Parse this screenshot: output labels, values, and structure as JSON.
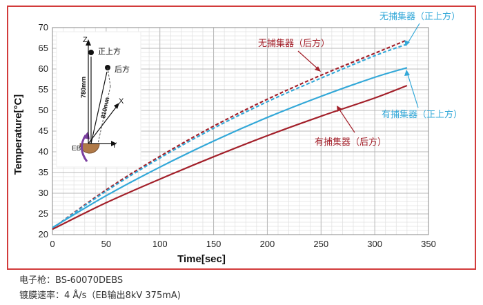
{
  "chart_data": {
    "type": "line",
    "xlabel": "Time[sec]",
    "ylabel": "Temperature[°C]",
    "xlim": [
      0,
      350
    ],
    "ylim": [
      20,
      70
    ],
    "xticks": [
      0,
      50,
      100,
      150,
      200,
      250,
      300,
      350
    ],
    "yticks": [
      20,
      25,
      30,
      35,
      40,
      45,
      50,
      55,
      60,
      65,
      70
    ],
    "grid": true,
    "series": [
      {
        "name": "无捕集器（后方）",
        "color": "#a3202a",
        "dashed": true,
        "x": [
          0,
          50,
          100,
          150,
          200,
          250,
          300,
          330
        ],
        "y": [
          21.5,
          30.8,
          38.9,
          46.2,
          52.7,
          58.5,
          63.8,
          67.0
        ]
      },
      {
        "name": "无捕集器（正上方）",
        "color": "#33a8d8",
        "dashed": true,
        "x": [
          0,
          50,
          100,
          150,
          200,
          250,
          300,
          330
        ],
        "y": [
          21.5,
          30.5,
          38.5,
          45.7,
          52.1,
          57.8,
          63.2,
          66.0
        ]
      },
      {
        "name": "有捕集器（正上方）",
        "color": "#33a8d8",
        "dashed": false,
        "x": [
          0,
          50,
          100,
          150,
          200,
          250,
          300,
          330
        ],
        "y": [
          21.7,
          29.4,
          36.3,
          42.6,
          48.3,
          53.4,
          58.0,
          60.3
        ]
      },
      {
        "name": "有捕集器（后方）",
        "color": "#a3202a",
        "dashed": false,
        "x": [
          0,
          50,
          100,
          150,
          200,
          250,
          300,
          330
        ],
        "y": [
          21.3,
          27.7,
          33.4,
          38.8,
          43.9,
          48.6,
          53.0,
          56.0
        ]
      }
    ],
    "annotations": {
      "nocollector_top": "无捕集器（正上方）",
      "nocollector_rear": "无捕集器（后方）",
      "collector_top": "有捕集器（正上方）",
      "collector_rear": "有捕集器（后方）"
    },
    "inset": {
      "z_label": "Z",
      "x_label": "X",
      "y_label": "Y",
      "top_label": "正上方",
      "rear_label": "后方",
      "dist_top": "780mm",
      "dist_rear": "810mm",
      "source_label": "EB"
    }
  },
  "caption": {
    "line1": "电子枪：BS-60070DEBS",
    "line2": "镀膜速率：4 Å/s（EB输出8kV 375mA)"
  },
  "colors": {
    "frame": "#d23b3b",
    "dark_red": "#a3202a",
    "light_blue": "#33a8d8",
    "eb_purple": "#7b3fa0"
  }
}
